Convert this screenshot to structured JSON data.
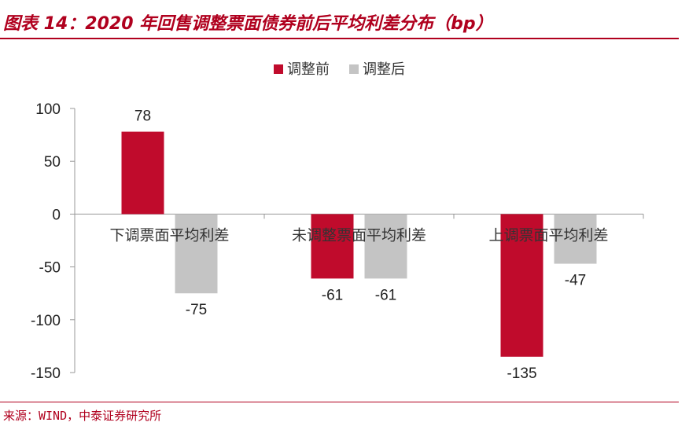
{
  "title": "图表 14：2020 年回售调整票面债券前后平均利差分布（bp）",
  "source": "来源：WIND，中泰证券研究所",
  "colors": {
    "before": "#c00b2c",
    "after": "#c4c4c4",
    "accent": "#b0001e",
    "axis": "#999999"
  },
  "chart_data": {
    "type": "bar",
    "title": "2020 年回售调整票面债券前后平均利差分布（bp）",
    "categories": [
      "下调票面平均利差",
      "未调整票面平均利差",
      "上调票面平均利差"
    ],
    "series": [
      {
        "name": "调整前",
        "values": [
          78,
          -61,
          -135
        ]
      },
      {
        "name": "调整后",
        "values": [
          -75,
          -61,
          -47
        ]
      }
    ],
    "yticks": [
      100,
      50,
      0,
      -50,
      -100,
      -150
    ],
    "ylim": [
      -150,
      100
    ],
    "xlabel": "",
    "ylabel": "",
    "legend": "top-center",
    "grid": false
  }
}
